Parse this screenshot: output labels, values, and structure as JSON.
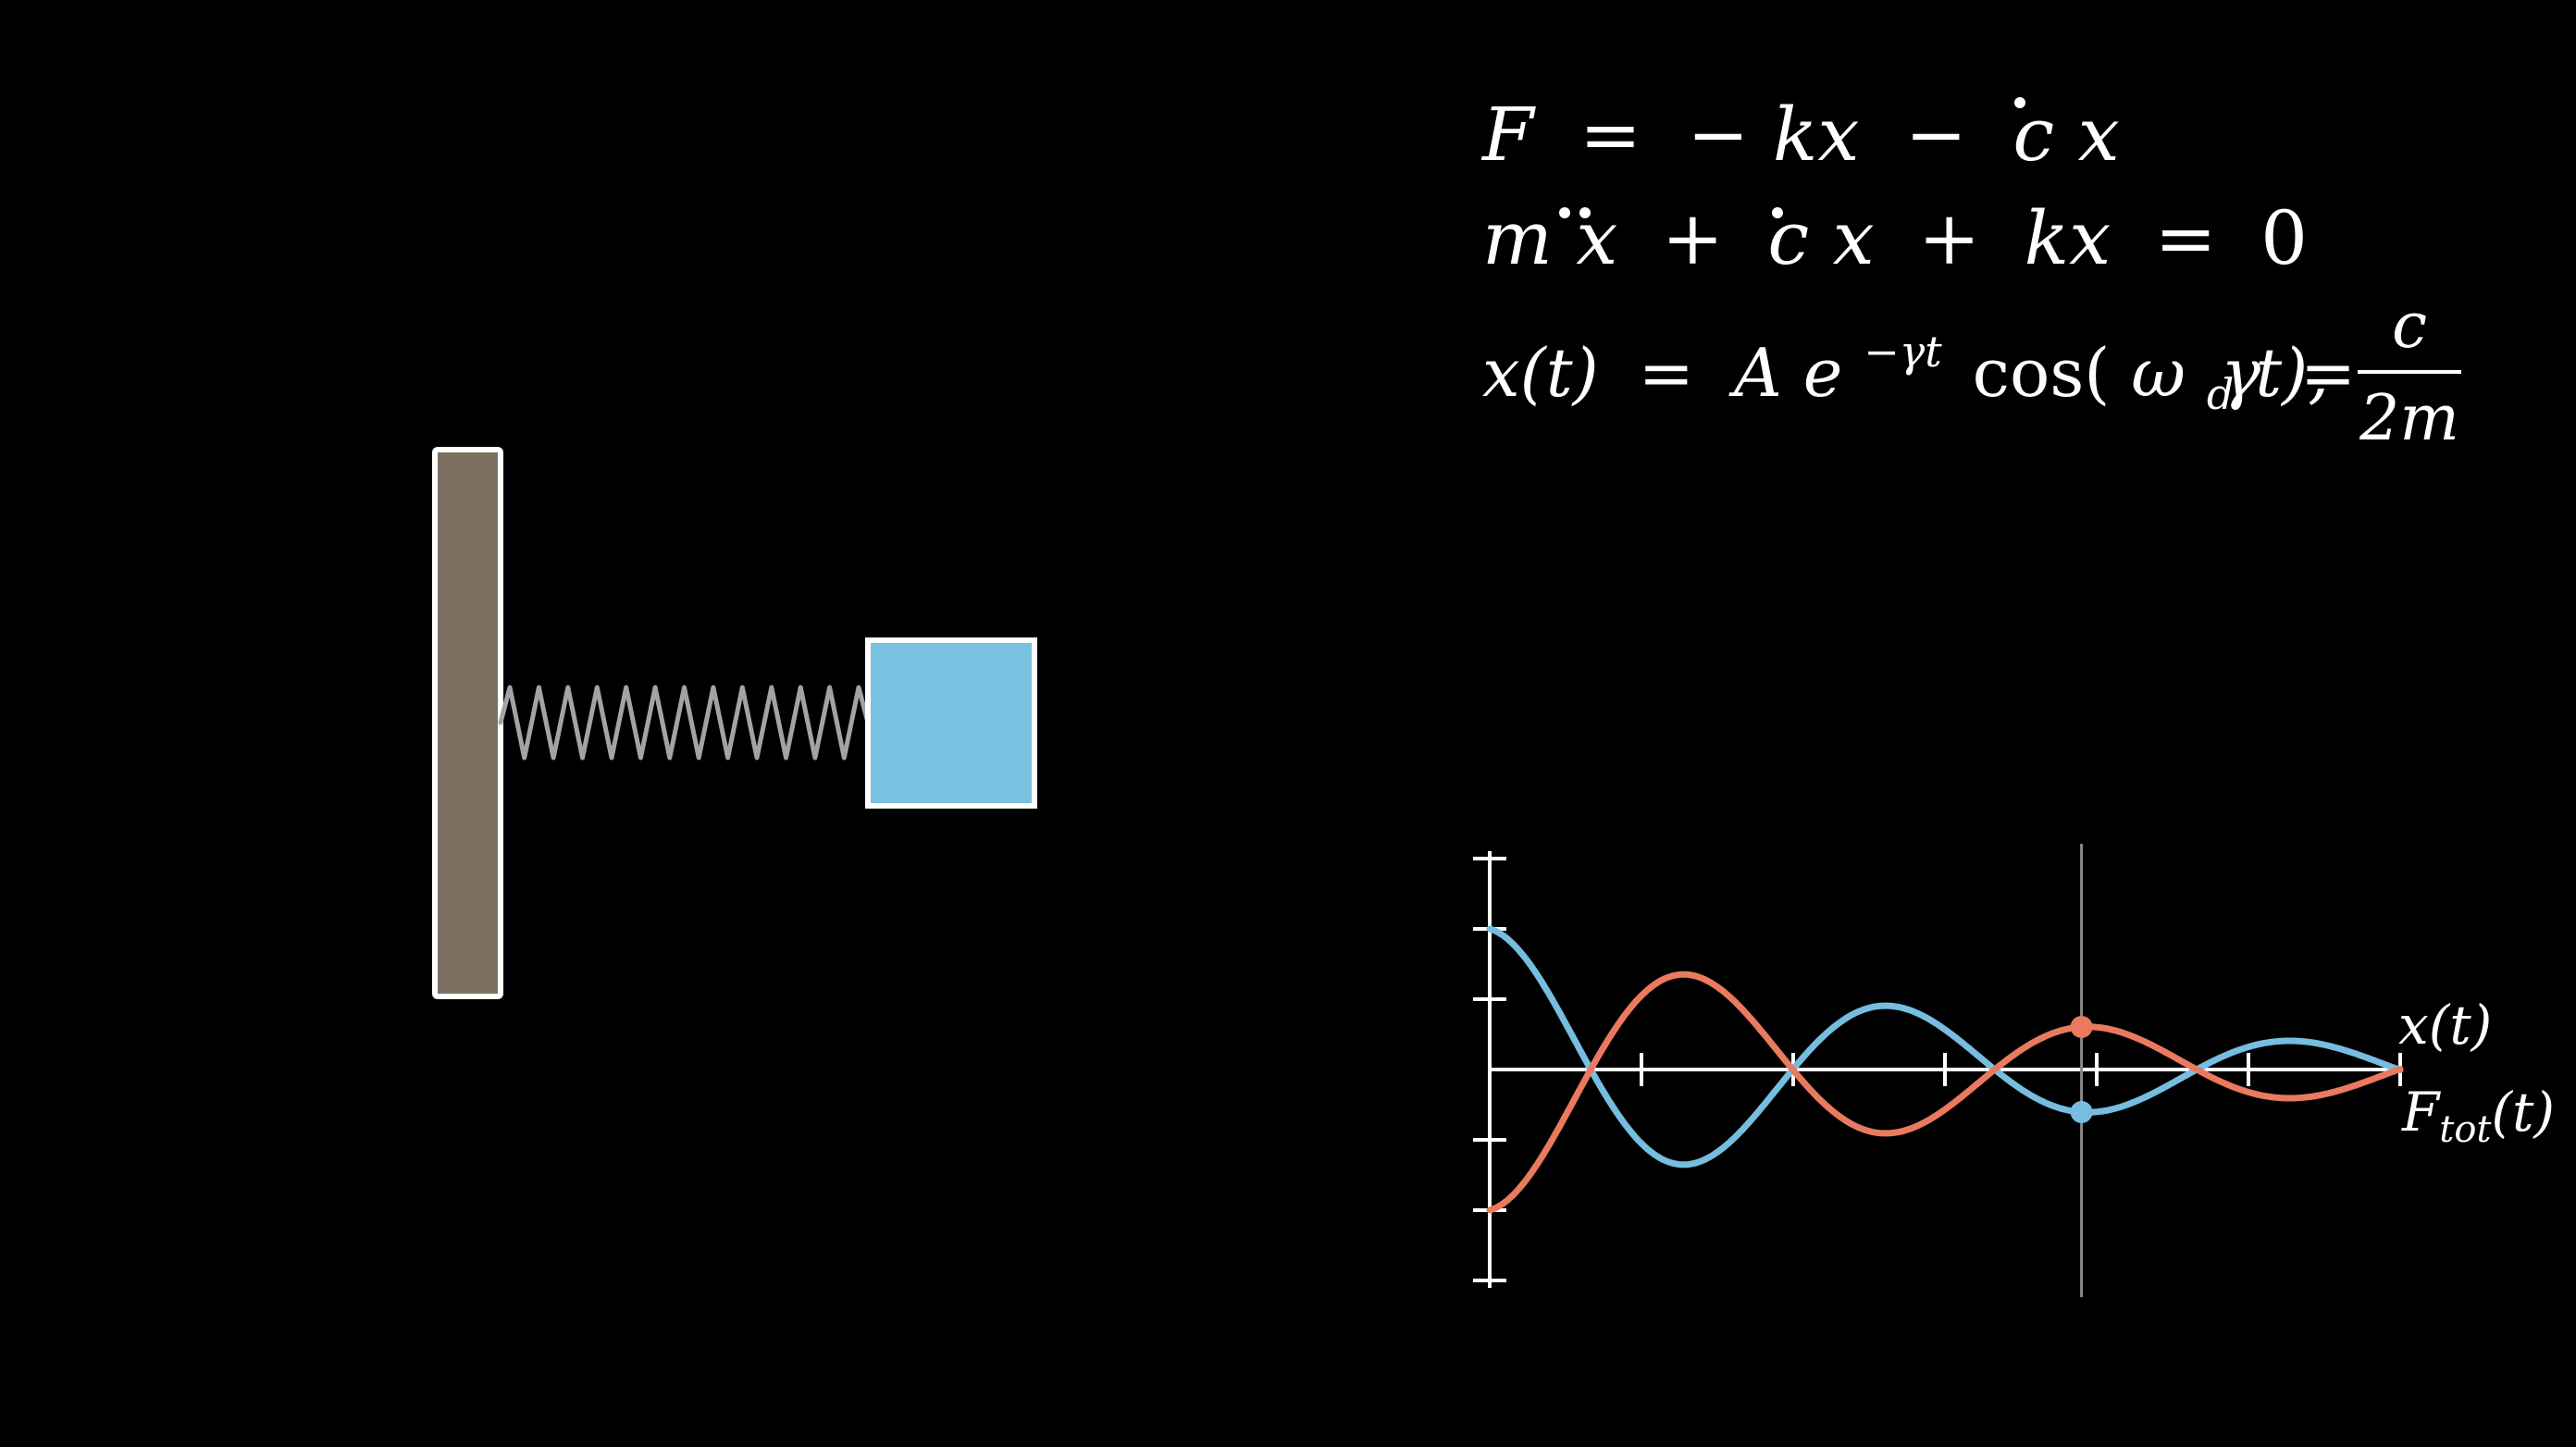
{
  "colors": {
    "background": "#000000",
    "wall_fill": "#7d7060",
    "wall_stroke": "#ffffff",
    "mass_fill": "#79c1e1",
    "mass_stroke": "#ffffff",
    "spring": "#a3a3a3",
    "axis": "#ffffff",
    "x_curve": "#76bde0",
    "f_curve": "#e97a5f",
    "time_cursor": "#8a8a8a"
  },
  "equations": {
    "eq1": {
      "F": "F",
      "eq": "=",
      "minus1": "−",
      "kx": "kx",
      "minus2": "−",
      "c": "c",
      "x": "x"
    },
    "eq2": {
      "m": "m",
      "x1": "x",
      "plus1": "+",
      "c": "c",
      "x2": "x",
      "plus2": "+",
      "kx": "kx",
      "eq": "=",
      "zero": "0"
    },
    "eq3": {
      "xt": "x(t)",
      "eq1": "=",
      "A": "A",
      "e": "e",
      "exp": "−γt",
      "cos_open": "cos(",
      "omega": "ω",
      "sub_d": "d",
      "t_close": "t),",
      "gamma": "γ",
      "eq2": "=",
      "frac_num": "c",
      "frac_den": "2m"
    }
  },
  "chart_data": {
    "type": "line",
    "x": {
      "min": 0,
      "max": 6,
      "tick_step": 1
    },
    "y": {
      "min": -1.5,
      "max": 1.5,
      "tick_step": 0.5
    },
    "grid": false,
    "series": [
      {
        "key": "x",
        "label_main": "x",
        "label_sub": "",
        "label_arg": "(t)",
        "formula": "exp(-gamma*t)*cos(omega*t)",
        "amplitude": 1.0,
        "gamma": 0.3,
        "omega": 2.36
      },
      {
        "key": "F",
        "label_main": "F",
        "label_sub": "tot",
        "label_arg": "(t)",
        "formula": "-amplitude*exp(-gamma*t)*cos(omega*t)",
        "amplitude": 1.0,
        "gamma": 0.3,
        "omega": 2.36
      }
    ],
    "time_cursor": 3.9
  }
}
